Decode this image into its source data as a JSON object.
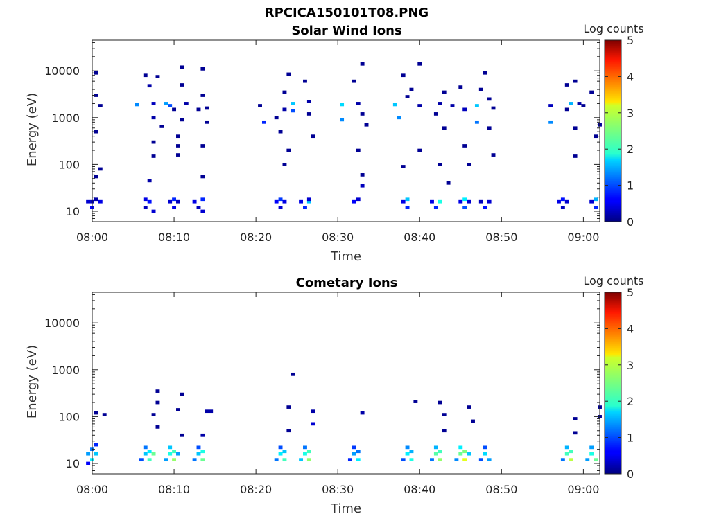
{
  "figure": {
    "title": "RPCICA150101T08.PNG"
  },
  "colorbar": {
    "label": "Log counts",
    "min": 0,
    "max": 5,
    "ticks": [
      "0",
      "1",
      "2",
      "3",
      "4",
      "5"
    ],
    "colormap": "jet"
  },
  "chart_data": [
    {
      "type": "heatmap",
      "title": "Solar Wind Ions",
      "xlabel": "Time",
      "ylabel": "Energy (eV)",
      "y_scale": "log",
      "ylim": [
        6,
        45000
      ],
      "xlim": [
        "08:00",
        "09:02"
      ],
      "x_ticks": [
        "08:00",
        "08:10",
        "08:20",
        "08:30",
        "08:40",
        "08:50",
        "09:00"
      ],
      "y_ticks": [
        "10",
        "100",
        "1000",
        "10000"
      ],
      "cells": [
        [
          "07:59:30",
          16,
          0.4
        ],
        [
          "08:00:00",
          12,
          0.6
        ],
        [
          "08:00:00",
          16,
          0.3
        ],
        [
          "08:00:30",
          18,
          0.2
        ],
        [
          "08:01:00",
          16,
          0.5
        ],
        [
          "08:00:30",
          9000,
          0.1
        ],
        [
          "08:01:00",
          1800,
          0.1
        ],
        [
          "08:00:30",
          3000,
          0.1
        ],
        [
          "08:00:30",
          500,
          0.1
        ],
        [
          "08:01:00",
          80,
          0.1
        ],
        [
          "08:00:30",
          55,
          0.1
        ],
        [
          "08:05:30",
          1900,
          1.3
        ],
        [
          "08:06:30",
          8000,
          0.1
        ],
        [
          "08:06:30",
          18,
          0.5
        ],
        [
          "08:06:30",
          12,
          0.3
        ],
        [
          "08:07:00",
          16,
          0.7
        ],
        [
          "08:07:30",
          10,
          0.4
        ],
        [
          "08:07:00",
          4800,
          0.2
        ],
        [
          "08:07:30",
          2000,
          0.3
        ],
        [
          "08:07:30",
          1000,
          0.2
        ],
        [
          "08:07:30",
          150,
          0.1
        ],
        [
          "08:07:00",
          45,
          0.2
        ],
        [
          "08:07:30",
          300,
          0.1
        ],
        [
          "08:08:00",
          7500,
          0.1
        ],
        [
          "08:08:30",
          650,
          0.1
        ],
        [
          "08:09:00",
          2000,
          1.4
        ],
        [
          "08:09:30",
          1800,
          1.0
        ],
        [
          "08:09:30",
          16,
          0.4
        ],
        [
          "08:10:00",
          12,
          0.5
        ],
        [
          "08:10:00",
          18,
          0.8
        ],
        [
          "08:10:30",
          16,
          0.3
        ],
        [
          "08:10:00",
          1500,
          0.1
        ],
        [
          "08:10:30",
          400,
          0.1
        ],
        [
          "08:10:30",
          160,
          0.1
        ],
        [
          "08:11:00",
          12000,
          0.1
        ],
        [
          "08:11:00",
          5000,
          0.1
        ],
        [
          "08:11:00",
          900,
          0.1
        ],
        [
          "08:11:30",
          2000,
          0.2
        ],
        [
          "08:10:30",
          250,
          0.1
        ],
        [
          "08:12:30",
          16,
          0.5
        ],
        [
          "08:13:00",
          12,
          0.3
        ],
        [
          "08:13:30",
          18,
          0.8
        ],
        [
          "08:13:30",
          10,
          0.4
        ],
        [
          "08:13:00",
          1500,
          0.1
        ],
        [
          "08:13:30",
          11000,
          0.1
        ],
        [
          "08:13:30",
          3000,
          0.1
        ],
        [
          "08:14:00",
          1600,
          0.1
        ],
        [
          "08:14:00",
          800,
          0.1
        ],
        [
          "08:13:30",
          55,
          0.1
        ],
        [
          "08:13:30",
          250,
          0.1
        ],
        [
          "08:20:30",
          1800,
          0.1
        ],
        [
          "08:21:00",
          800,
          0.8
        ],
        [
          "08:22:30",
          16,
          0.6
        ],
        [
          "08:23:00",
          12,
          0.4
        ],
        [
          "08:23:00",
          18,
          0.9
        ],
        [
          "08:23:30",
          16,
          0.5
        ],
        [
          "08:22:30",
          1000,
          0.1
        ],
        [
          "08:23:00",
          500,
          0.1
        ],
        [
          "08:23:30",
          3500,
          0.1
        ],
        [
          "08:23:30",
          1500,
          0.2
        ],
        [
          "08:24:00",
          8500,
          0.1
        ],
        [
          "08:24:00",
          200,
          0.1
        ],
        [
          "08:24:30",
          2000,
          1.6
        ],
        [
          "08:24:30",
          1400,
          1.0
        ],
        [
          "08:23:30",
          100,
          0.1
        ],
        [
          "08:25:30",
          16,
          0.5
        ],
        [
          "08:26:00",
          12,
          0.8
        ],
        [
          "08:26:30",
          16,
          1.6
        ],
        [
          "08:26:30",
          18,
          0.4
        ],
        [
          "08:26:00",
          6000,
          0.1
        ],
        [
          "08:26:30",
          1200,
          0.1
        ],
        [
          "08:27:00",
          400,
          0.1
        ],
        [
          "08:26:30",
          2200,
          0.2
        ],
        [
          "08:30:30",
          1900,
          1.7
        ],
        [
          "08:30:30",
          900,
          1.3
        ],
        [
          "08:32:00",
          16,
          0.6
        ],
        [
          "08:32:30",
          18,
          0.4
        ],
        [
          "08:32:00",
          6000,
          0.1
        ],
        [
          "08:32:30",
          2000,
          0.2
        ],
        [
          "08:33:00",
          14000,
          0.1
        ],
        [
          "08:33:00",
          1200,
          0.1
        ],
        [
          "08:33:00",
          35,
          0.3
        ],
        [
          "08:33:00",
          60,
          0.1
        ],
        [
          "08:33:30",
          700,
          0.1
        ],
        [
          "08:32:30",
          200,
          0.1
        ],
        [
          "08:37:00",
          1900,
          1.6
        ],
        [
          "08:37:30",
          1000,
          1.3
        ],
        [
          "08:38:00",
          16,
          0.5
        ],
        [
          "08:38:30",
          12,
          0.8
        ],
        [
          "08:38:30",
          18,
          1.6
        ],
        [
          "08:38:00",
          8000,
          0.1
        ],
        [
          "08:38:30",
          2800,
          0.1
        ],
        [
          "08:38:00",
          90,
          0.1
        ],
        [
          "08:39:00",
          4000,
          0.1
        ],
        [
          "08:40:00",
          14000,
          0.1
        ],
        [
          "08:40:00",
          1800,
          0.2
        ],
        [
          "08:40:00",
          200,
          0.1
        ],
        [
          "08:41:30",
          16,
          0.5
        ],
        [
          "08:42:00",
          12,
          0.8
        ],
        [
          "08:42:30",
          16,
          2.0
        ],
        [
          "08:42:00",
          1200,
          0.1
        ],
        [
          "08:42:30",
          2000,
          0.2
        ],
        [
          "08:43:00",
          3500,
          0.1
        ],
        [
          "08:42:30",
          100,
          0.1
        ],
        [
          "08:43:30",
          40,
          0.1
        ],
        [
          "08:43:00",
          600,
          0.1
        ],
        [
          "08:44:00",
          1800,
          0.2
        ],
        [
          "08:45:00",
          16,
          0.5
        ],
        [
          "08:45:30",
          12,
          1.0
        ],
        [
          "08:45:30",
          18,
          1.8
        ],
        [
          "08:46:00",
          16,
          0.4
        ],
        [
          "08:45:00",
          4500,
          0.1
        ],
        [
          "08:45:30",
          1500,
          0.3
        ],
        [
          "08:45:30",
          250,
          0.1
        ],
        [
          "08:46:00",
          100,
          0.1
        ],
        [
          "08:47:00",
          1800,
          1.6
        ],
        [
          "08:47:00",
          800,
          1.2
        ],
        [
          "08:47:30",
          16,
          0.3
        ],
        [
          "08:48:00",
          12,
          0.7
        ],
        [
          "08:48:30",
          16,
          0.4
        ],
        [
          "08:47:30",
          4000,
          0.1
        ],
        [
          "08:48:00",
          9000,
          0.1
        ],
        [
          "08:48:30",
          2500,
          0.1
        ],
        [
          "08:48:30",
          600,
          0.1
        ],
        [
          "08:49:00",
          160,
          0.1
        ],
        [
          "08:49:00",
          1600,
          0.1
        ],
        [
          "08:56:00",
          1800,
          0.3
        ],
        [
          "08:56:00",
          800,
          1.3
        ],
        [
          "08:57:00",
          16,
          0.5
        ],
        [
          "08:57:30",
          12,
          0.3
        ],
        [
          "08:57:30",
          18,
          0.7
        ],
        [
          "08:58:00",
          16,
          0.4
        ],
        [
          "08:58:00",
          1500,
          0.1
        ],
        [
          "08:58:00",
          5000,
          0.1
        ],
        [
          "08:58:30",
          2000,
          1.5
        ],
        [
          "08:59:00",
          6000,
          0.1
        ],
        [
          "08:59:00",
          600,
          0.1
        ],
        [
          "08:59:00",
          150,
          0.1
        ],
        [
          "08:59:30",
          2000,
          0.2
        ],
        [
          "09:00:00",
          1800,
          0.1
        ],
        [
          "09:01:00",
          16,
          0.4
        ],
        [
          "09:01:30",
          12,
          0.8
        ],
        [
          "09:01:30",
          18,
          1.5
        ],
        [
          "09:01:00",
          3500,
          0.1
        ],
        [
          "09:02:00",
          700,
          0.1
        ],
        [
          "09:01:30",
          400,
          0.1
        ]
      ]
    },
    {
      "type": "heatmap",
      "title": "Cometary Ions",
      "xlabel": "Time",
      "ylabel": "Energy (eV)",
      "y_scale": "log",
      "ylim": [
        6,
        45000
      ],
      "xlim": [
        "08:00",
        "09:02"
      ],
      "x_ticks": [
        "08:00",
        "08:10",
        "08:20",
        "08:30",
        "08:40",
        "08:50",
        "09:00"
      ],
      "y_ticks": [
        "10",
        "100",
        "1000",
        "10000"
      ],
      "cells": [
        [
          "07:59:30",
          10,
          0.6
        ],
        [
          "07:59:30",
          16,
          1.4
        ],
        [
          "08:00:00",
          12,
          1.8
        ],
        [
          "08:00:00",
          20,
          1.2
        ],
        [
          "08:00:30",
          16,
          1.6
        ],
        [
          "08:00:30",
          25,
          0.8
        ],
        [
          "08:00:30",
          120,
          0.1
        ],
        [
          "08:01:30",
          110,
          0.1
        ],
        [
          "08:06:00",
          12,
          1.0
        ],
        [
          "08:06:30",
          16,
          1.6
        ],
        [
          "08:06:30",
          22,
          1.2
        ],
        [
          "08:07:00",
          12,
          2.2
        ],
        [
          "08:07:00",
          18,
          1.8
        ],
        [
          "08:07:30",
          16,
          2.4
        ],
        [
          "08:07:30",
          110,
          0.1
        ],
        [
          "08:08:00",
          200,
          0.1
        ],
        [
          "08:08:00",
          350,
          0.1
        ],
        [
          "08:08:00",
          60,
          0.1
        ],
        [
          "08:09:00",
          12,
          1.4
        ],
        [
          "08:09:30",
          16,
          2.0
        ],
        [
          "08:09:30",
          22,
          1.6
        ],
        [
          "08:10:00",
          12,
          2.6
        ],
        [
          "08:10:00",
          18,
          2.2
        ],
        [
          "08:10:30",
          16,
          1.4
        ],
        [
          "08:10:30",
          140,
          0.1
        ],
        [
          "08:11:00",
          300,
          0.1
        ],
        [
          "08:11:00",
          40,
          0.1
        ],
        [
          "08:12:30",
          12,
          1.2
        ],
        [
          "08:13:00",
          16,
          1.6
        ],
        [
          "08:13:00",
          22,
          1.0
        ],
        [
          "08:13:30",
          12,
          2.4
        ],
        [
          "08:13:30",
          18,
          2.0
        ],
        [
          "08:14:00",
          130,
          0.2
        ],
        [
          "08:14:30",
          130,
          0.2
        ],
        [
          "08:13:30",
          40,
          0.2
        ],
        [
          "08:22:30",
          12,
          1.2
        ],
        [
          "08:23:00",
          16,
          1.8
        ],
        [
          "08:23:00",
          22,
          1.0
        ],
        [
          "08:23:30",
          12,
          2.2
        ],
        [
          "08:23:30",
          18,
          1.6
        ],
        [
          "08:24:00",
          160,
          0.1
        ],
        [
          "08:24:00",
          50,
          0.1
        ],
        [
          "08:24:30",
          800,
          0.1
        ],
        [
          "08:25:30",
          12,
          1.6
        ],
        [
          "08:26:00",
          16,
          2.0
        ],
        [
          "08:26:00",
          22,
          1.2
        ],
        [
          "08:26:30",
          12,
          2.6
        ],
        [
          "08:26:30",
          18,
          2.2
        ],
        [
          "08:27:00",
          130,
          0.2
        ],
        [
          "08:27:00",
          70,
          0.4
        ],
        [
          "08:31:30",
          12,
          0.8
        ],
        [
          "08:32:00",
          16,
          1.4
        ],
        [
          "08:32:00",
          22,
          0.9
        ],
        [
          "08:32:30",
          12,
          1.8
        ],
        [
          "08:32:30",
          18,
          1.2
        ],
        [
          "08:33:00",
          120,
          0.2
        ],
        [
          "08:38:00",
          12,
          1.0
        ],
        [
          "08:38:30",
          16,
          1.8
        ],
        [
          "08:38:30",
          22,
          1.3
        ],
        [
          "08:39:00",
          12,
          2.0
        ],
        [
          "08:39:00",
          18,
          1.5
        ],
        [
          "08:39:30",
          210,
          0.1
        ],
        [
          "08:41:30",
          12,
          1.2
        ],
        [
          "08:42:00",
          16,
          2.3
        ],
        [
          "08:42:00",
          22,
          1.5
        ],
        [
          "08:42:30",
          12,
          2.6
        ],
        [
          "08:42:30",
          18,
          2.2
        ],
        [
          "08:42:30",
          200,
          0.1
        ],
        [
          "08:43:00",
          50,
          0.1
        ],
        [
          "08:43:00",
          110,
          0.1
        ],
        [
          "08:44:30",
          12,
          1.3
        ],
        [
          "08:45:00",
          16,
          2.4
        ],
        [
          "08:45:00",
          22,
          1.8
        ],
        [
          "08:45:30",
          12,
          3.0
        ],
        [
          "08:45:30",
          18,
          2.5
        ],
        [
          "08:46:00",
          16,
          1.6
        ],
        [
          "08:46:00",
          160,
          0.1
        ],
        [
          "08:46:30",
          80,
          0.1
        ],
        [
          "08:47:30",
          12,
          1.0
        ],
        [
          "08:48:00",
          16,
          1.7
        ],
        [
          "08:48:00",
          22,
          1.0
        ],
        [
          "08:48:30",
          12,
          1.4
        ],
        [
          "08:57:30",
          12,
          1.2
        ],
        [
          "08:58:00",
          16,
          2.2
        ],
        [
          "08:58:00",
          22,
          1.5
        ],
        [
          "08:58:30",
          12,
          2.8
        ],
        [
          "08:58:30",
          18,
          2.2
        ],
        [
          "08:59:00",
          90,
          0.1
        ],
        [
          "08:59:00",
          45,
          0.1
        ],
        [
          "09:00:30",
          12,
          1.4
        ],
        [
          "09:01:00",
          16,
          2.0
        ],
        [
          "09:01:00",
          22,
          1.4
        ],
        [
          "09:01:30",
          12,
          2.4
        ],
        [
          "09:02:00",
          100,
          0.1
        ],
        [
          "09:02:00",
          160,
          0.1
        ]
      ]
    }
  ]
}
